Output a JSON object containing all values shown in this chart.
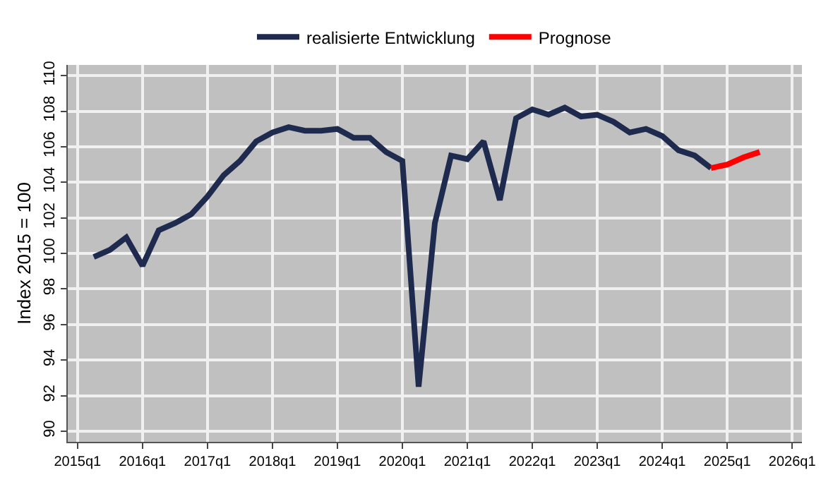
{
  "chart_data": {
    "type": "line",
    "ylabel": "Index 2015 = 100",
    "categories": [
      "2015q1",
      null,
      null,
      null,
      "2016q1",
      null,
      null,
      null,
      "2017q1",
      null,
      null,
      null,
      "2018q1",
      null,
      null,
      null,
      "2019q1",
      null,
      null,
      null,
      "2020q1",
      null,
      null,
      null,
      "2021q1",
      null,
      null,
      null,
      "2022q1",
      null,
      null,
      null,
      "2023q1",
      null,
      null,
      null,
      "2024q1",
      null,
      null,
      null,
      "2025q1",
      null,
      null,
      null,
      "2026q1"
    ],
    "series": [
      {
        "name": "realisierte Entwicklung",
        "color": "#1f2a4f",
        "values": [
          null,
          99.8,
          100.2,
          100.9,
          99.3,
          101.3,
          101.7,
          102.2,
          103.2,
          104.4,
          105.2,
          106.3,
          106.8,
          107.1,
          106.9,
          106.9,
          107.0,
          106.5,
          106.5,
          105.7,
          105.2,
          92.5,
          101.7,
          105.5,
          105.3,
          106.3,
          103.0,
          107.6,
          108.1,
          107.8,
          108.2,
          107.7,
          107.8,
          107.4,
          106.8,
          107.0,
          106.6,
          105.8,
          105.5,
          104.8,
          null,
          null,
          null,
          null,
          null
        ]
      },
      {
        "name": "Prognose",
        "color": "#ff0000",
        "values": [
          null,
          null,
          null,
          null,
          null,
          null,
          null,
          null,
          null,
          null,
          null,
          null,
          null,
          null,
          null,
          null,
          null,
          null,
          null,
          null,
          null,
          null,
          null,
          null,
          null,
          null,
          null,
          null,
          null,
          null,
          null,
          null,
          null,
          null,
          null,
          null,
          null,
          null,
          null,
          104.8,
          105.0,
          105.4,
          105.7,
          null,
          null
        ]
      }
    ],
    "ylim": [
      89.4,
      110.6
    ],
    "yticks": [
      90,
      92,
      94,
      96,
      98,
      100,
      102,
      104,
      106,
      108,
      110
    ],
    "grid": true,
    "legend": "top",
    "marker": "none",
    "line_style": "solid"
  }
}
